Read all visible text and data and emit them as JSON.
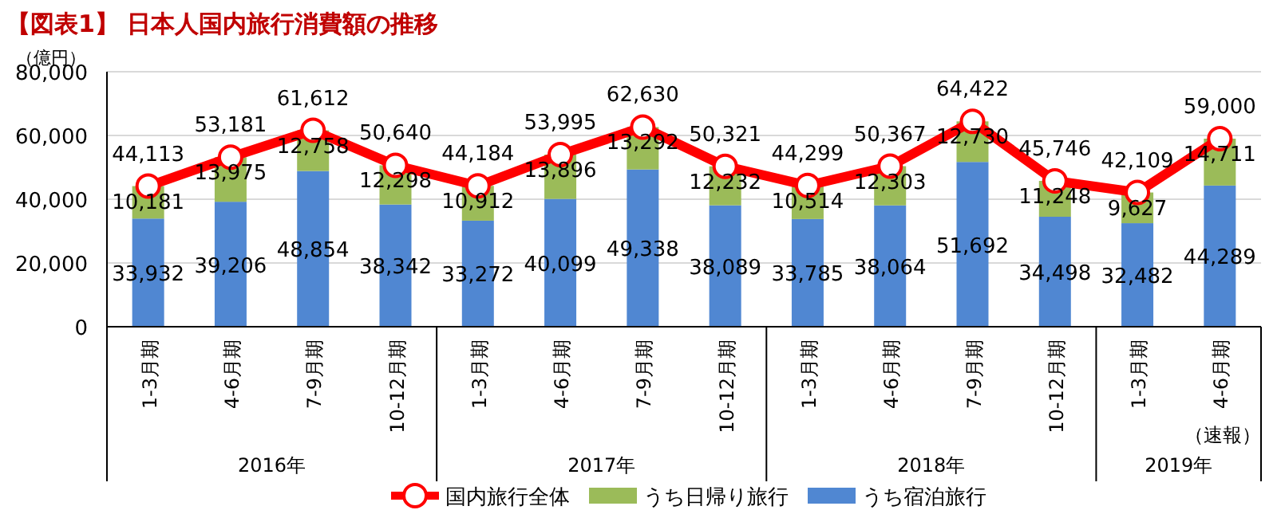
{
  "chart_data": {
    "type": "bar",
    "stacked": true,
    "title": "【図表1】 日本人国内旅行消費額の推移",
    "ylabel": "（億円）",
    "categories": [
      "1-3月期",
      "4-6月期",
      "7-9月期",
      "10-12月期",
      "1-3月期",
      "4-6月期",
      "7-9月期",
      "10-12月期",
      "1-3月期",
      "4-6月期",
      "7-9月期",
      "10-12月期",
      "1-3月期",
      "4-6月期"
    ],
    "series": [
      {
        "name": "うち宿泊旅行",
        "color": "#5087d2",
        "values": [
          33932,
          39206,
          48854,
          38342,
          33272,
          40099,
          49338,
          38089,
          33785,
          38064,
          51692,
          34498,
          32482,
          44289
        ],
        "value_labels": [
          "33,932",
          "39,206",
          "48,854",
          "38,342",
          "33,272",
          "40,099",
          "49,338",
          "38,089",
          "33,785",
          "38,064",
          "51,692",
          "34,498",
          "32,482",
          "44,289"
        ]
      },
      {
        "name": "うち日帰り旅行",
        "color": "#9bbb59",
        "values": [
          10181,
          13975,
          12758,
          12298,
          10912,
          13896,
          13292,
          12232,
          10514,
          12303,
          12730,
          11248,
          9627,
          14711
        ],
        "value_labels": [
          "10,181",
          "13,975",
          "12,758",
          "12,298",
          "10,912",
          "13,896",
          "13,292",
          "12,232",
          "10,514",
          "12,303",
          "12,730",
          "11,248",
          "9,627",
          "14,711"
        ]
      },
      {
        "name": "国内旅行全体",
        "type": "line",
        "color": "#ff0000",
        "marker": "circle",
        "values": [
          44113,
          53181,
          61612,
          50640,
          44184,
          53995,
          62630,
          50321,
          44299,
          50367,
          64422,
          45746,
          42109,
          59000
        ],
        "value_labels": [
          "44,113",
          "53,181",
          "61,612",
          "50,640",
          "44,184",
          "53,995",
          "62,630",
          "50,321",
          "44,299",
          "50,367",
          "64,422",
          "45,746",
          "42,109",
          "59,000"
        ]
      }
    ],
    "ylim": [
      0,
      80000
    ],
    "yticks": [
      {
        "value": 0,
        "label": "0"
      },
      {
        "value": 20000,
        "label": "20,000"
      },
      {
        "value": 40000,
        "label": "40,000"
      },
      {
        "value": 60000,
        "label": "60,000"
      },
      {
        "value": 80000,
        "label": "80,000"
      }
    ],
    "grid": "y",
    "legend": "bottom",
    "annotations": [
      "2016年",
      "2017年",
      "2018年",
      "2019年",
      "（速報）"
    ]
  }
}
